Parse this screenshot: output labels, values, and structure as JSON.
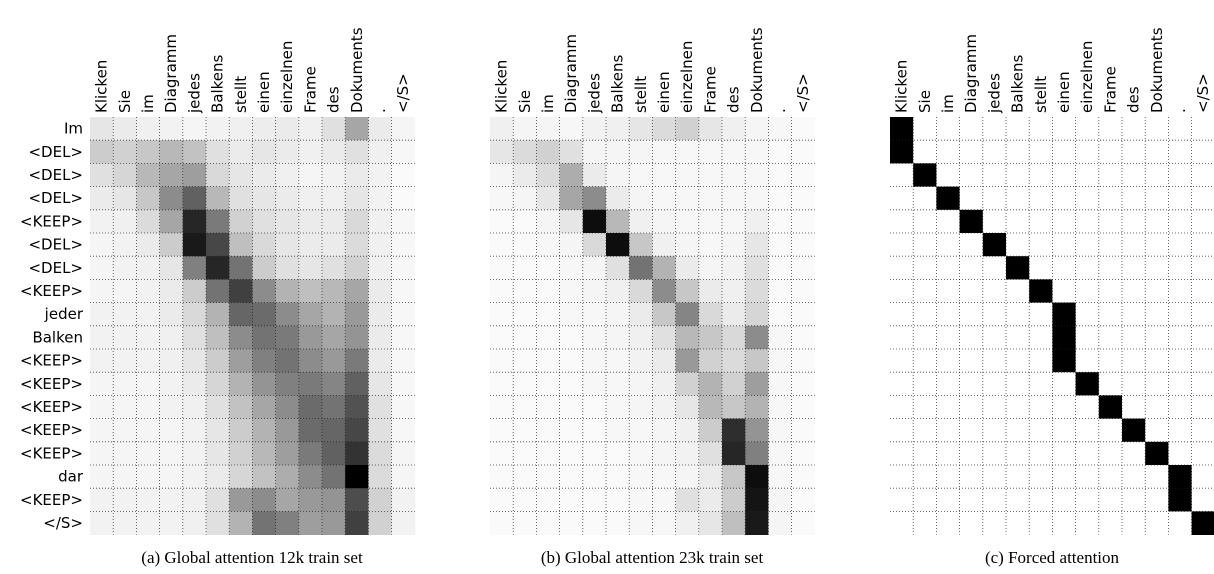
{
  "chart_data": [
    {
      "type": "heatmap",
      "caption": "(a) Global attention 12k train set",
      "x_labels": [
        "Klicken",
        "Sie",
        "im",
        "Diagramm",
        "jedes",
        "Balkens",
        "stellt",
        "einen",
        "einzelnen",
        "Frame",
        "des",
        "Dokuments",
        ".",
        "</S>"
      ],
      "y_labels": [
        "Im",
        "<DEL>",
        "<DEL>",
        "<DEL>",
        "<KEEP>",
        "<DEL>",
        "<DEL>",
        "<KEEP>",
        "jeder",
        "Balken",
        "<KEEP>",
        "<KEEP>",
        "<KEEP>",
        "<KEEP>",
        "<KEEP>",
        "dar",
        "<KEEP>",
        "</S>"
      ],
      "grid": true,
      "colormap": "greys",
      "values": [
        [
          0.1,
          0.08,
          0.06,
          0.05,
          0.04,
          0.05,
          0.06,
          0.07,
          0.08,
          0.06,
          0.12,
          0.35,
          0.08,
          0.04
        ],
        [
          0.2,
          0.18,
          0.22,
          0.28,
          0.24,
          0.12,
          0.08,
          0.1,
          0.08,
          0.06,
          0.08,
          0.12,
          0.06,
          0.03
        ],
        [
          0.12,
          0.16,
          0.28,
          0.35,
          0.38,
          0.15,
          0.1,
          0.08,
          0.06,
          0.04,
          0.05,
          0.08,
          0.05,
          0.02
        ],
        [
          0.08,
          0.1,
          0.22,
          0.45,
          0.62,
          0.28,
          0.12,
          0.1,
          0.08,
          0.06,
          0.06,
          0.1,
          0.05,
          0.02
        ],
        [
          0.05,
          0.06,
          0.14,
          0.35,
          0.85,
          0.52,
          0.18,
          0.12,
          0.1,
          0.08,
          0.08,
          0.15,
          0.06,
          0.03
        ],
        [
          0.04,
          0.05,
          0.08,
          0.2,
          0.9,
          0.72,
          0.25,
          0.15,
          0.1,
          0.08,
          0.08,
          0.14,
          0.06,
          0.03
        ],
        [
          0.04,
          0.05,
          0.06,
          0.1,
          0.5,
          0.85,
          0.55,
          0.2,
          0.12,
          0.1,
          0.12,
          0.18,
          0.06,
          0.03
        ],
        [
          0.04,
          0.04,
          0.05,
          0.08,
          0.2,
          0.55,
          0.75,
          0.45,
          0.3,
          0.25,
          0.28,
          0.35,
          0.08,
          0.03
        ],
        [
          0.05,
          0.05,
          0.05,
          0.08,
          0.15,
          0.3,
          0.6,
          0.58,
          0.45,
          0.35,
          0.3,
          0.4,
          0.08,
          0.03
        ],
        [
          0.05,
          0.05,
          0.05,
          0.06,
          0.12,
          0.25,
          0.45,
          0.55,
          0.52,
          0.4,
          0.35,
          0.42,
          0.08,
          0.03
        ],
        [
          0.05,
          0.05,
          0.05,
          0.06,
          0.1,
          0.2,
          0.38,
          0.5,
          0.55,
          0.45,
          0.4,
          0.52,
          0.08,
          0.03
        ],
        [
          0.04,
          0.04,
          0.04,
          0.05,
          0.08,
          0.16,
          0.3,
          0.42,
          0.5,
          0.52,
          0.48,
          0.62,
          0.1,
          0.03
        ],
        [
          0.04,
          0.04,
          0.04,
          0.05,
          0.06,
          0.12,
          0.24,
          0.35,
          0.45,
          0.58,
          0.55,
          0.68,
          0.12,
          0.03
        ],
        [
          0.04,
          0.04,
          0.04,
          0.04,
          0.05,
          0.1,
          0.2,
          0.3,
          0.4,
          0.58,
          0.6,
          0.72,
          0.12,
          0.03
        ],
        [
          0.04,
          0.04,
          0.04,
          0.04,
          0.05,
          0.1,
          0.18,
          0.28,
          0.38,
          0.52,
          0.62,
          0.8,
          0.14,
          0.04
        ],
        [
          0.04,
          0.04,
          0.04,
          0.04,
          0.05,
          0.08,
          0.16,
          0.24,
          0.32,
          0.45,
          0.55,
          1.0,
          0.14,
          0.04
        ],
        [
          0.05,
          0.05,
          0.05,
          0.05,
          0.06,
          0.12,
          0.4,
          0.45,
          0.35,
          0.4,
          0.42,
          0.7,
          0.18,
          0.05
        ],
        [
          0.05,
          0.05,
          0.05,
          0.05,
          0.06,
          0.12,
          0.3,
          0.55,
          0.5,
          0.38,
          0.4,
          0.75,
          0.18,
          0.05
        ]
      ]
    },
    {
      "type": "heatmap",
      "caption": "(b) Global attention 23k train set",
      "x_labels": [
        "Klicken",
        "Sie",
        "im",
        "Diagramm",
        "jedes",
        "Balkens",
        "stellt",
        "einen",
        "einzelnen",
        "Frame",
        "des",
        "Dokuments",
        ".",
        "</S>"
      ],
      "y_labels": [
        "Im",
        "<DEL>",
        "<DEL>",
        "<DEL>",
        "<KEEP>",
        "<DEL>",
        "<DEL>",
        "<KEEP>",
        "jeder",
        "Balken",
        "<KEEP>",
        "<KEEP>",
        "<KEEP>",
        "<KEEP>",
        "<KEEP>",
        "dar",
        "<KEEP>",
        "</S>"
      ],
      "grid": true,
      "colormap": "greys",
      "values": [
        [
          0.06,
          0.04,
          0.04,
          0.03,
          0.05,
          0.06,
          0.1,
          0.14,
          0.18,
          0.1,
          0.06,
          0.04,
          0.03,
          0.02
        ],
        [
          0.1,
          0.14,
          0.18,
          0.12,
          0.04,
          0.04,
          0.04,
          0.03,
          0.03,
          0.03,
          0.03,
          0.03,
          0.02,
          0.02
        ],
        [
          0.04,
          0.08,
          0.14,
          0.32,
          0.08,
          0.04,
          0.03,
          0.03,
          0.03,
          0.03,
          0.03,
          0.03,
          0.02,
          0.02
        ],
        [
          0.03,
          0.04,
          0.1,
          0.35,
          0.45,
          0.08,
          0.04,
          0.03,
          0.03,
          0.03,
          0.03,
          0.03,
          0.02,
          0.02
        ],
        [
          0.02,
          0.02,
          0.04,
          0.1,
          0.95,
          0.28,
          0.06,
          0.04,
          0.03,
          0.03,
          0.03,
          0.06,
          0.02,
          0.02
        ],
        [
          0.02,
          0.02,
          0.03,
          0.04,
          0.15,
          0.95,
          0.22,
          0.06,
          0.04,
          0.03,
          0.04,
          0.1,
          0.02,
          0.02
        ],
        [
          0.02,
          0.02,
          0.02,
          0.03,
          0.04,
          0.12,
          0.55,
          0.3,
          0.08,
          0.04,
          0.05,
          0.12,
          0.02,
          0.02
        ],
        [
          0.02,
          0.02,
          0.02,
          0.03,
          0.04,
          0.06,
          0.15,
          0.45,
          0.22,
          0.08,
          0.06,
          0.14,
          0.02,
          0.02
        ],
        [
          0.02,
          0.02,
          0.02,
          0.03,
          0.03,
          0.04,
          0.08,
          0.22,
          0.48,
          0.15,
          0.08,
          0.16,
          0.02,
          0.02
        ],
        [
          0.02,
          0.02,
          0.02,
          0.02,
          0.03,
          0.04,
          0.06,
          0.12,
          0.28,
          0.22,
          0.15,
          0.45,
          0.03,
          0.02
        ],
        [
          0.02,
          0.02,
          0.02,
          0.02,
          0.03,
          0.03,
          0.05,
          0.08,
          0.4,
          0.18,
          0.14,
          0.22,
          0.03,
          0.02
        ],
        [
          0.02,
          0.02,
          0.02,
          0.02,
          0.03,
          0.03,
          0.04,
          0.06,
          0.18,
          0.3,
          0.18,
          0.38,
          0.03,
          0.02
        ],
        [
          0.02,
          0.02,
          0.02,
          0.02,
          0.02,
          0.03,
          0.04,
          0.05,
          0.1,
          0.28,
          0.22,
          0.3,
          0.03,
          0.02
        ],
        [
          0.02,
          0.02,
          0.02,
          0.02,
          0.02,
          0.03,
          0.03,
          0.04,
          0.06,
          0.2,
          0.82,
          0.42,
          0.03,
          0.02
        ],
        [
          0.02,
          0.02,
          0.02,
          0.02,
          0.02,
          0.02,
          0.03,
          0.04,
          0.05,
          0.12,
          0.85,
          0.5,
          0.03,
          0.02
        ],
        [
          0.02,
          0.02,
          0.02,
          0.02,
          0.02,
          0.02,
          0.03,
          0.03,
          0.04,
          0.08,
          0.22,
          0.95,
          0.03,
          0.02
        ],
        [
          0.02,
          0.02,
          0.02,
          0.02,
          0.02,
          0.02,
          0.03,
          0.03,
          0.12,
          0.08,
          0.2,
          0.92,
          0.04,
          0.02
        ],
        [
          0.02,
          0.02,
          0.02,
          0.02,
          0.02,
          0.02,
          0.03,
          0.03,
          0.06,
          0.1,
          0.25,
          0.9,
          0.04,
          0.02
        ]
      ]
    },
    {
      "type": "heatmap",
      "caption": "(c) Forced attention",
      "x_labels": [
        "Klicken",
        "Sie",
        "im",
        "Diagramm",
        "jedes",
        "Balkens",
        "stellt",
        "einen",
        "einzelnen",
        "Frame",
        "des",
        "Dokuments",
        ".",
        "</S>"
      ],
      "y_labels": [
        "Im",
        "<DEL>",
        "<DEL>",
        "<DEL>",
        "<KEEP>",
        "<DEL>",
        "<DEL>",
        "<KEEP>",
        "jeder",
        "Balken",
        "<KEEP>",
        "<KEEP>",
        "<KEEP>",
        "<KEEP>",
        "<KEEP>",
        "dar",
        "<KEEP>",
        "</S>"
      ],
      "grid": true,
      "colormap": "greys",
      "values": [
        [
          1,
          0,
          0,
          0,
          0,
          0,
          0,
          0,
          0,
          0,
          0,
          0,
          0,
          0
        ],
        [
          1,
          0,
          0,
          0,
          0,
          0,
          0,
          0,
          0,
          0,
          0,
          0,
          0,
          0
        ],
        [
          0,
          1,
          0,
          0,
          0,
          0,
          0,
          0,
          0,
          0,
          0,
          0,
          0,
          0
        ],
        [
          0,
          0,
          1,
          0,
          0,
          0,
          0,
          0,
          0,
          0,
          0,
          0,
          0,
          0
        ],
        [
          0,
          0,
          0,
          1,
          0,
          0,
          0,
          0,
          0,
          0,
          0,
          0,
          0,
          0
        ],
        [
          0,
          0,
          0,
          0,
          1,
          0,
          0,
          0,
          0,
          0,
          0,
          0,
          0,
          0
        ],
        [
          0,
          0,
          0,
          0,
          0,
          1,
          0,
          0,
          0,
          0,
          0,
          0,
          0,
          0
        ],
        [
          0,
          0,
          0,
          0,
          0,
          0,
          1,
          0,
          0,
          0,
          0,
          0,
          0,
          0
        ],
        [
          0,
          0,
          0,
          0,
          0,
          0,
          0,
          1,
          0,
          0,
          0,
          0,
          0,
          0
        ],
        [
          0,
          0,
          0,
          0,
          0,
          0,
          0,
          1,
          0,
          0,
          0,
          0,
          0,
          0
        ],
        [
          0,
          0,
          0,
          0,
          0,
          0,
          0,
          1,
          0,
          0,
          0,
          0,
          0,
          0
        ],
        [
          0,
          0,
          0,
          0,
          0,
          0,
          0,
          0,
          1,
          0,
          0,
          0,
          0,
          0
        ],
        [
          0,
          0,
          0,
          0,
          0,
          0,
          0,
          0,
          0,
          1,
          0,
          0,
          0,
          0
        ],
        [
          0,
          0,
          0,
          0,
          0,
          0,
          0,
          0,
          0,
          0,
          1,
          0,
          0,
          0
        ],
        [
          0,
          0,
          0,
          0,
          0,
          0,
          0,
          0,
          0,
          0,
          0,
          1,
          0,
          0
        ],
        [
          0,
          0,
          0,
          0,
          0,
          0,
          0,
          0,
          0,
          0,
          0,
          0,
          1,
          0
        ],
        [
          0,
          0,
          0,
          0,
          0,
          0,
          0,
          0,
          0,
          0,
          0,
          0,
          1,
          0
        ],
        [
          0,
          0,
          0,
          0,
          0,
          0,
          0,
          0,
          0,
          0,
          0,
          0,
          0,
          1
        ]
      ]
    }
  ]
}
